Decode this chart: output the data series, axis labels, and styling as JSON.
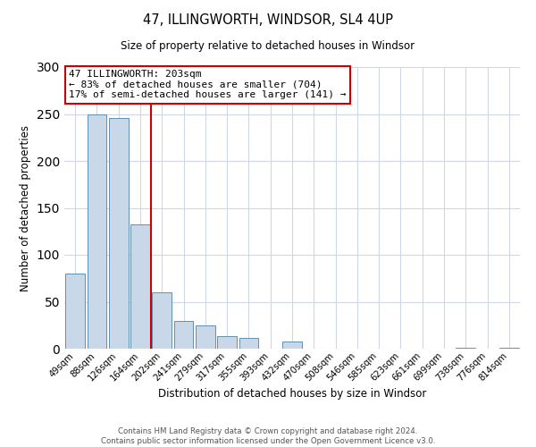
{
  "title": "47, ILLINGWORTH, WINDSOR, SL4 4UP",
  "subtitle": "Size of property relative to detached houses in Windsor",
  "xlabel": "Distribution of detached houses by size in Windsor",
  "ylabel": "Number of detached properties",
  "bin_labels": [
    "49sqm",
    "88sqm",
    "126sqm",
    "164sqm",
    "202sqm",
    "241sqm",
    "279sqm",
    "317sqm",
    "355sqm",
    "393sqm",
    "432sqm",
    "470sqm",
    "508sqm",
    "546sqm",
    "585sqm",
    "623sqm",
    "661sqm",
    "699sqm",
    "738sqm",
    "776sqm",
    "814sqm"
  ],
  "bar_values": [
    80,
    250,
    246,
    132,
    60,
    30,
    25,
    13,
    11,
    0,
    8,
    0,
    0,
    0,
    0,
    0,
    0,
    0,
    1,
    0,
    1
  ],
  "bar_color": "#c8d8e8",
  "bar_edgecolor": "#6090b0",
  "vline_index": 4,
  "vline_color": "#cc0000",
  "annotation_line1": "47 ILLINGWORTH: 203sqm",
  "annotation_line2": "← 83% of detached houses are smaller (704)",
  "annotation_line3": "17% of semi-detached houses are larger (141) →",
  "annotation_box_edgecolor": "#cc0000",
  "ylim": [
    0,
    300
  ],
  "yticks": [
    0,
    50,
    100,
    150,
    200,
    250,
    300
  ],
  "footer_line1": "Contains HM Land Registry data © Crown copyright and database right 2024.",
  "footer_line2": "Contains public sector information licensed under the Open Government Licence v3.0.",
  "background_color": "#ffffff",
  "grid_color": "#d0d8e8",
  "fig_width": 6.0,
  "fig_height": 5.0,
  "fig_dpi": 100
}
